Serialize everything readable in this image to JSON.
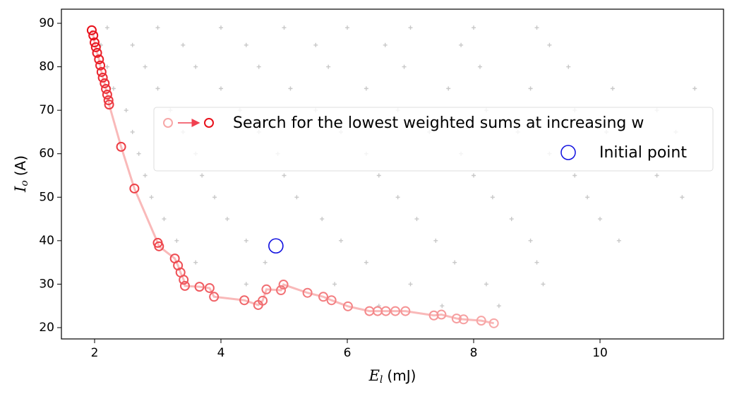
{
  "chart_data": {
    "type": "scatter",
    "x_label": {
      "symbol": "E",
      "subscript": "l",
      "unit": "(mJ)"
    },
    "y_label": {
      "symbol": "I",
      "subscript": "o",
      "unit": "(A)"
    },
    "xlim": [
      1.475,
      11.955
    ],
    "ylim": [
      17.4,
      93.25
    ],
    "xticks": [
      2,
      4,
      6,
      8,
      10
    ],
    "yticks": [
      20,
      30,
      40,
      50,
      60,
      70,
      80,
      90
    ],
    "legend": "center right",
    "series": [
      {
        "color": "#c8c8c8",
        "x": [
          2.2,
          3,
          4,
          5,
          6,
          7,
          8,
          9,
          2.1,
          2.6,
          3.4,
          4.4,
          5.5,
          6.6,
          7.8,
          9.2,
          2.2,
          2.8,
          3.6,
          4.6,
          5.7,
          6.9,
          8.1,
          9.5,
          2.3,
          3,
          4,
          5.1,
          6.3,
          7.6,
          8.9,
          10.2,
          11.5,
          2.5,
          3.2,
          4.3,
          5.5,
          6.8,
          8.2,
          9.6,
          10.9,
          2.6,
          3.4,
          4.6,
          5.9,
          7.3,
          8.7,
          10.1,
          11.2,
          2.7,
          3.6,
          4.9,
          6.3,
          7.8,
          9.2,
          10.5,
          11.3,
          2.8,
          3.7,
          5,
          6.5,
          8,
          9.6,
          10.9,
          2.9,
          3.9,
          5.2,
          6.8,
          8.3,
          9.8,
          11.3,
          3.1,
          4.1,
          5.6,
          7.1,
          8.6,
          10,
          3.3,
          4.4,
          5.9,
          7.4,
          8.9,
          10.3,
          3.6,
          4.7,
          6.3,
          7.7,
          9,
          4.4,
          5.8,
          7,
          8.2,
          9.1,
          6.5,
          7.5,
          8.4
        ],
        "y": [
          89,
          89,
          89,
          89,
          89,
          89,
          89,
          89,
          85,
          85,
          85,
          85,
          85,
          85,
          85,
          85,
          80,
          80,
          80,
          80,
          80,
          80,
          80,
          80,
          75,
          75,
          75,
          75,
          75,
          75,
          75,
          75,
          75,
          70,
          70,
          70,
          70,
          70,
          70,
          70,
          70,
          65,
          65,
          65,
          65,
          65,
          65,
          65,
          65,
          60,
          60,
          60,
          60,
          60,
          60,
          60,
          60,
          55,
          55,
          55,
          55,
          55,
          55,
          55,
          50,
          50,
          50,
          50,
          50,
          50,
          50,
          45,
          45,
          45,
          45,
          45,
          45,
          40,
          40,
          40,
          40,
          40,
          40,
          35,
          35,
          35,
          35,
          35,
          30,
          30,
          30,
          30,
          30,
          25,
          25,
          25
        ]
      },
      {
        "name": "Search for the lowest weighted sums at increasing w",
        "color_start": "#f7a8a8",
        "color_end": "#e8101a",
        "x": [
          8.32,
          8.12,
          7.84,
          7.73,
          7.49,
          7.37,
          6.92,
          6.76,
          6.61,
          6.48,
          6.35,
          6.01,
          5.75,
          5.62,
          5.37,
          4.99,
          4.95,
          4.72,
          4.66,
          4.59,
          4.37,
          3.89,
          3.82,
          3.66,
          3.43,
          3.41,
          3.36,
          3.32,
          3.27,
          3.02,
          3.0,
          2.63,
          2.42,
          2.23,
          2.22,
          2.2,
          2.18,
          2.16,
          2.13,
          2.11,
          2.09,
          2.07,
          2.04,
          2.02,
          2.0,
          1.98,
          1.955
        ],
        "y": [
          21.0,
          21.6,
          21.9,
          22.1,
          23.0,
          22.8,
          23.8,
          23.8,
          23.8,
          23.8,
          23.8,
          24.9,
          26.3,
          27.1,
          28.0,
          29.9,
          28.6,
          28.8,
          26.2,
          25.2,
          26.3,
          27.1,
          29.1,
          29.4,
          29.6,
          31.0,
          32.7,
          34.3,
          35.9,
          38.7,
          39.5,
          52.0,
          61.6,
          71.3,
          72.3,
          73.6,
          74.9,
          76.2,
          77.5,
          78.8,
          80.3,
          81.7,
          83.2,
          84.5,
          85.6,
          87.2,
          88.4
        ]
      },
      {
        "name": "Initial point",
        "color": "#1010e0",
        "x": [
          4.87
        ],
        "y": [
          38.8
        ]
      }
    ]
  }
}
